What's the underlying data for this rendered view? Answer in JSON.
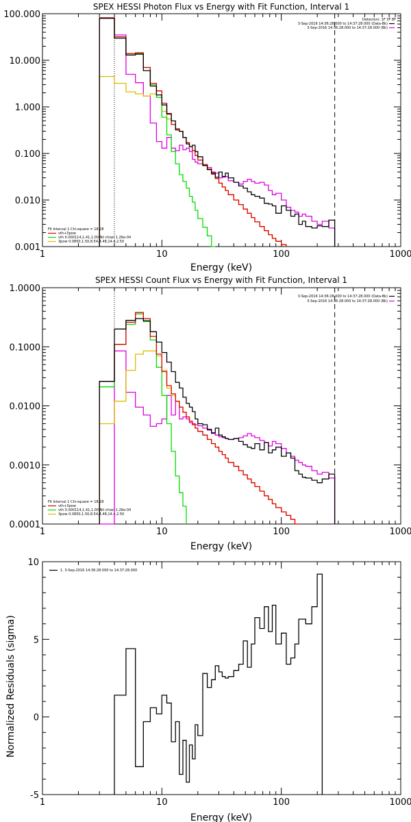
{
  "chart_data": [
    {
      "type": "line",
      "title": "SPEX HESSI Photon Flux vs Energy with Fit Function, Interval 1",
      "xlabel": "Energy (keV)",
      "ylabel": "",
      "xscale": "log",
      "yscale": "log",
      "xlim": [
        1,
        1000
      ],
      "ylim": [
        0.001,
        100
      ],
      "x_ticks": [
        "1",
        "10",
        "100",
        "1000"
      ],
      "y_ticks": [
        "100.000",
        "10.000",
        "1.000",
        "0.100",
        "0.010",
        "0.001"
      ],
      "energy_edges": [
        3,
        4,
        5,
        6,
        7,
        8,
        9,
        10,
        11,
        12,
        13,
        14,
        15,
        16,
        17,
        18,
        19,
        20,
        22,
        24,
        26,
        28,
        30,
        32,
        34,
        36,
        40,
        44,
        48,
        52,
        56,
        60,
        66,
        72,
        78,
        84,
        90,
        100,
        110,
        120,
        130,
        140,
        150,
        160,
        180,
        200,
        220,
        250,
        280
      ],
      "series": [
        {
          "name": "",
          "color": "#000000",
          "values": [
            80,
            30,
            13,
            13.5,
            6,
            2.8,
            1.8,
            1.1,
            0.7,
            0.5,
            0.32,
            0.3,
            0.22,
            0.16,
            0.14,
            0.15,
            0.11,
            0.085,
            0.055,
            0.045,
            0.038,
            0.031,
            0.04,
            0.032,
            0.038,
            0.03,
            0.024,
            0.02,
            0.018,
            0.015,
            0.013,
            0.012,
            0.011,
            0.0085,
            0.0082,
            0.0075,
            0.0052,
            0.0075,
            0.006,
            0.0045,
            0.005,
            0.003,
            0.0035,
            0.0027,
            0.0025,
            0.0028,
            0.0027,
            0.0037
          ]
        },
        {
          "name": "",
          "color": "#dd00dd",
          "values": [
            80,
            35,
            5,
            3.3,
            1.7,
            0.45,
            0.18,
            0.13,
            0.22,
            0.13,
            0.115,
            0.15,
            0.12,
            0.13,
            0.11,
            0.075,
            0.065,
            0.06,
            0.058,
            0.05,
            0.04,
            0.038,
            0.03,
            0.031,
            0.032,
            0.026,
            0.024,
            0.022,
            0.025,
            0.028,
            0.025,
            0.023,
            0.024,
            0.021,
            0.016,
            0.013,
            0.014,
            0.01,
            0.007,
            0.006,
            0.0055,
            0.0045,
            0.005,
            0.0045,
            0.0035,
            0.003,
            0.0035,
            0.0025
          ]
        },
        {
          "name": "vth+3pow",
          "color": "#dd0000",
          "values": [
            82,
            32,
            14,
            14.5,
            7,
            3.2,
            2.2,
            1.2,
            0.72,
            0.42,
            0.34,
            0.3,
            0.22,
            0.17,
            0.14,
            0.115,
            0.09,
            0.072,
            0.058,
            0.046,
            0.036,
            0.029,
            0.023,
            0.019,
            0.016,
            0.013,
            0.01,
            0.008,
            0.0064,
            0.0052,
            0.0042,
            0.0034,
            0.0027,
            0.0022,
            0.0018,
            0.0015,
            0.0013,
            0.0011
          ]
        },
        {
          "name": "vth 0.000114,1.41,1.00  Nil chian 1.26e-04",
          "color": "#00dd00",
          "values": [
            80,
            30,
            14,
            14,
            7,
            3,
            1.6,
            0.6,
            0.25,
            0.11,
            0.06,
            0.035,
            0.025,
            0.018,
            0.012,
            0.009,
            0.006,
            0.004,
            0.0026,
            0.0017,
            0.001
          ]
        },
        {
          "name": "3pow 0.0850,1.50,8.54,4.48,14.4,2.50",
          "color": "#ddbb00",
          "values": [
            4.5,
            3.2,
            2.1,
            1.9,
            1.7,
            1.9,
            1.6,
            0.8,
            0.55,
            0.42,
            0.34,
            0.3,
            0.22,
            0.17,
            0.14,
            0.115,
            0.09,
            0.072,
            0.058,
            0.046,
            0.036,
            0.029,
            0.023,
            0.019,
            0.016,
            0.013,
            0.01,
            0.008,
            0.0064,
            0.0052,
            0.0042,
            0.0034,
            0.0027,
            0.0022,
            0.0018,
            0.0015,
            0.0013,
            0.0011
          ]
        }
      ],
      "legend_top": [
        "Detectors: 1F 3F 8F",
        "3-Sep-2016 14:36:28.000 to 14:37:28.000 (Data-Bk)",
        "3-Sep-2016 14:36:28.000 to 14:37:28.000 (Bk)"
      ],
      "legend_fit": [
        "Fit Interval 1   Chi-square = 18.28",
        "vth+3pow",
        "vth 0.000114,1.41,1.00  Nil chian 1.26e-04",
        "3pow 0.0850,1.50,8.54,4.48,14.4,2.50"
      ],
      "vlines": [
        {
          "x": 4,
          "style": "dotted"
        },
        {
          "x": 280,
          "style": "dashed"
        }
      ]
    },
    {
      "type": "line",
      "title": "SPEX HESSI Count Flux vs Energy with Fit Function, Interval 1",
      "xlabel": "Energy (keV)",
      "ylabel": "",
      "xscale": "log",
      "yscale": "log",
      "xlim": [
        1,
        1000
      ],
      "ylim": [
        0.0001,
        1
      ],
      "x_ticks": [
        "1",
        "10",
        "100",
        "1000"
      ],
      "y_ticks": [
        "1.0000",
        "0.1000",
        "0.0100",
        "0.0010",
        "0.0001"
      ],
      "energy_edges": [
        3,
        4,
        5,
        6,
        7,
        8,
        9,
        10,
        11,
        12,
        13,
        14,
        15,
        16,
        17,
        18,
        19,
        20,
        22,
        24,
        26,
        28,
        30,
        32,
        34,
        36,
        40,
        44,
        48,
        52,
        56,
        60,
        66,
        72,
        78,
        84,
        90,
        100,
        110,
        120,
        130,
        140,
        150,
        160,
        180,
        200,
        220,
        250,
        280
      ],
      "series": [
        {
          "name": "",
          "color": "#000000",
          "values": [
            0.026,
            0.2,
            0.28,
            0.3,
            0.27,
            0.18,
            0.12,
            0.08,
            0.055,
            0.038,
            0.025,
            0.02,
            0.014,
            0.011,
            0.0095,
            0.008,
            0.006,
            0.005,
            0.0048,
            0.004,
            0.0035,
            0.0042,
            0.0032,
            0.003,
            0.0028,
            0.0027,
            0.0028,
            0.0025,
            0.0022,
            0.002,
            0.0019,
            0.0023,
            0.0018,
            0.0024,
            0.0016,
            0.0018,
            0.002,
            0.0014,
            0.0016,
            0.0013,
            0.0008,
            0.0007,
            0.00062,
            0.0006,
            0.00055,
            0.0005,
            0.00058,
            0.0007
          ]
        },
        {
          "name": "",
          "color": "#dd00dd",
          "values": [
            0.0001,
            0.085,
            0.017,
            0.0095,
            0.007,
            0.0045,
            0.005,
            0.006,
            0.015,
            0.007,
            0.012,
            0.006,
            0.0065,
            0.006,
            0.0052,
            0.005,
            0.0048,
            0.0046,
            0.0042,
            0.0039,
            0.0034,
            0.0032,
            0.003,
            0.0029,
            0.0028,
            0.0027,
            0.0028,
            0.0029,
            0.0031,
            0.0034,
            0.0031,
            0.0029,
            0.0026,
            0.0024,
            0.0021,
            0.0025,
            0.0023,
            0.0019,
            0.0016,
            0.0014,
            0.0012,
            0.0011,
            0.001,
            0.00095,
            0.0008,
            0.0007,
            0.00075,
            0.0006
          ]
        },
        {
          "name": "vth+3pow",
          "color": "#dd0000",
          "values": [
            0.026,
            0.11,
            0.26,
            0.38,
            0.3,
            0.15,
            0.075,
            0.038,
            0.022,
            0.016,
            0.012,
            0.0095,
            0.0078,
            0.0065,
            0.0055,
            0.0048,
            0.0042,
            0.0037,
            0.0032,
            0.0027,
            0.0023,
            0.002,
            0.0017,
            0.0015,
            0.0013,
            0.0011,
            0.00095,
            0.0008,
            0.00068,
            0.00058,
            0.0005,
            0.00043,
            0.00036,
            0.0003,
            0.00026,
            0.00022,
            0.00019,
            0.00016,
            0.00014,
            0.00012,
            0.0001
          ]
        },
        {
          "name": "vth 0.000114,1.41,1.00  Nil chian 1.26e-04",
          "color": "#00dd00",
          "values": [
            0.021,
            0.11,
            0.24,
            0.36,
            0.28,
            0.13,
            0.045,
            0.015,
            0.005,
            0.0017,
            0.00065,
            0.00034,
            0.0002
          ]
        },
        {
          "name": "3pow 0.0850,1.50,8.54,4.48,14.4,2.50",
          "color": "#ddbb00",
          "values": [
            0.005,
            0.012,
            0.04,
            0.075,
            0.085,
            0.085,
            0.07,
            0.04,
            0.02,
            0.015,
            0.012,
            0.0095,
            0.0078,
            0.0065,
            0.0055,
            0.0048,
            0.0042,
            0.0037,
            0.0032,
            0.0027,
            0.0023,
            0.002,
            0.0017,
            0.0015,
            0.0013,
            0.0011,
            0.00095,
            0.0008,
            0.00068,
            0.00058,
            0.0005,
            0.00043,
            0.00036,
            0.0003,
            0.00026,
            0.00022,
            0.00019,
            0.00016,
            0.00014,
            0.00012,
            0.0001
          ]
        }
      ],
      "legend_top": [
        "3-Sep-2016 14:36:28.000 to 14:37:28.000 (Data-Bk)",
        "3-Sep-2016 14:36:28.000 to 14:37:28.000 (Bk)"
      ],
      "legend_fit": [
        "Fit Interval 1   Chi-square = 18.28",
        "vth+3pow",
        "vth 0.000114,1.41,1.00  Nil chian 1.26e-04",
        "3pow 0.0850,1.50,8.54,4.48,14.4,2.50"
      ],
      "vlines": [
        {
          "x": 4,
          "style": "dotted"
        },
        {
          "x": 280,
          "style": "dashed"
        }
      ]
    },
    {
      "type": "line",
      "title": "",
      "xlabel": "Energy (keV)",
      "ylabel": "Normalized Residuals (sigma)",
      "xscale": "log",
      "yscale": "linear",
      "xlim": [
        1,
        1000
      ],
      "ylim": [
        -5,
        10
      ],
      "x_ticks": [
        "1",
        "10",
        "100",
        "1000"
      ],
      "y_ticks": [
        "10",
        "5",
        "0",
        "-5"
      ],
      "energy_edges": [
        4,
        5,
        6,
        7,
        8,
        9,
        10,
        11,
        12,
        13,
        14,
        15,
        16,
        17,
        18,
        19,
        20,
        22,
        24,
        26,
        28,
        30,
        32,
        34,
        36,
        40,
        44,
        48,
        52,
        56,
        60,
        66,
        72,
        78,
        84,
        90,
        100,
        110,
        120,
        130,
        140,
        150,
        160,
        180,
        200,
        220,
        250,
        280
      ],
      "series": [
        {
          "name": "1.  3-Sep-2016 14:36:28.000 to 14:37:28.000",
          "color": "#000000",
          "values": [
            1.4,
            4.4,
            -3.2,
            -0.3,
            0.6,
            0.2,
            1.4,
            0.9,
            -1.6,
            -0.3,
            -3.7,
            -1.5,
            -4.2,
            -1.8,
            -2.7,
            -0.5,
            -1.2,
            2.8,
            1.9,
            2.4,
            3.3,
            2.9,
            2.6,
            2.5,
            2.6,
            3.0,
            3.4,
            4.9,
            3.2,
            4.7,
            6.4,
            5.7,
            7.1,
            5.5,
            7.2,
            4.7,
            5.4,
            3.4,
            3.8,
            4.7,
            6.3,
            6.3,
            6.0,
            7.1,
            9.2
          ]
        }
      ],
      "legend_top": [
        "1.  3-Sep-2016 14:36:28.000 to 14:37:28.000"
      ],
      "vlines": []
    }
  ]
}
